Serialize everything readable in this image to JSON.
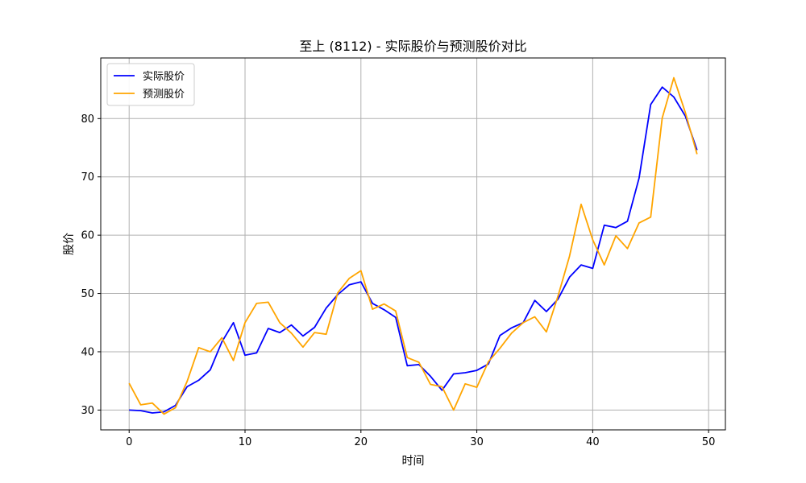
{
  "chart_data": {
    "type": "line",
    "title": "至上 (8112) - 实际股价与预测股价对比",
    "xlabel": "时间",
    "ylabel": "股价",
    "xlim": [
      -2.45,
      51.45
    ],
    "ylim": [
      26.6,
      90.4
    ],
    "xticks": [
      0,
      10,
      20,
      30,
      40,
      50
    ],
    "yticks": [
      30,
      40,
      50,
      60,
      70,
      80
    ],
    "grid": true,
    "legend_position": "top-left",
    "x": [
      0,
      1,
      2,
      3,
      4,
      5,
      6,
      7,
      8,
      9,
      10,
      11,
      12,
      13,
      14,
      15,
      16,
      17,
      18,
      19,
      20,
      21,
      22,
      23,
      24,
      25,
      26,
      27,
      28,
      29,
      30,
      31,
      32,
      33,
      34,
      35,
      36,
      37,
      38,
      39,
      40,
      41,
      42,
      43,
      44,
      45,
      46,
      47,
      48,
      49
    ],
    "series": [
      {
        "name": "实际股价",
        "color": "#0000ff",
        "values": [
          30.0,
          29.9,
          29.5,
          29.7,
          30.8,
          34.0,
          35.1,
          36.9,
          41.7,
          45.0,
          39.4,
          39.8,
          44.0,
          43.3,
          44.6,
          42.7,
          44.2,
          47.5,
          49.8,
          51.5,
          52.0,
          48.3,
          47.2,
          45.9,
          37.6,
          37.8,
          35.8,
          33.4,
          36.2,
          36.4,
          36.8,
          37.9,
          42.8,
          44.1,
          45.0,
          48.8,
          46.9,
          49.0,
          52.8,
          54.9,
          54.3,
          61.7,
          61.3,
          62.4,
          69.8,
          82.4,
          85.4,
          83.7,
          80.4,
          74.6
        ]
      },
      {
        "name": "预测股价",
        "color": "#ffa500",
        "values": [
          34.6,
          30.9,
          31.2,
          29.3,
          30.4,
          34.9,
          40.7,
          40.0,
          42.4,
          38.5,
          45.0,
          48.3,
          48.5,
          45.0,
          43.2,
          40.8,
          43.3,
          43.0,
          50.1,
          52.6,
          53.9,
          47.3,
          48.2,
          47.0,
          39.0,
          38.2,
          34.4,
          34.0,
          30.0,
          34.5,
          33.9,
          38.3,
          40.6,
          43.2,
          45.0,
          46.0,
          43.4,
          49.5,
          56.4,
          65.3,
          59.2,
          54.9,
          59.9,
          57.7,
          62.1,
          63.1,
          80.1,
          87.0,
          81.0,
          73.9
        ]
      }
    ]
  }
}
